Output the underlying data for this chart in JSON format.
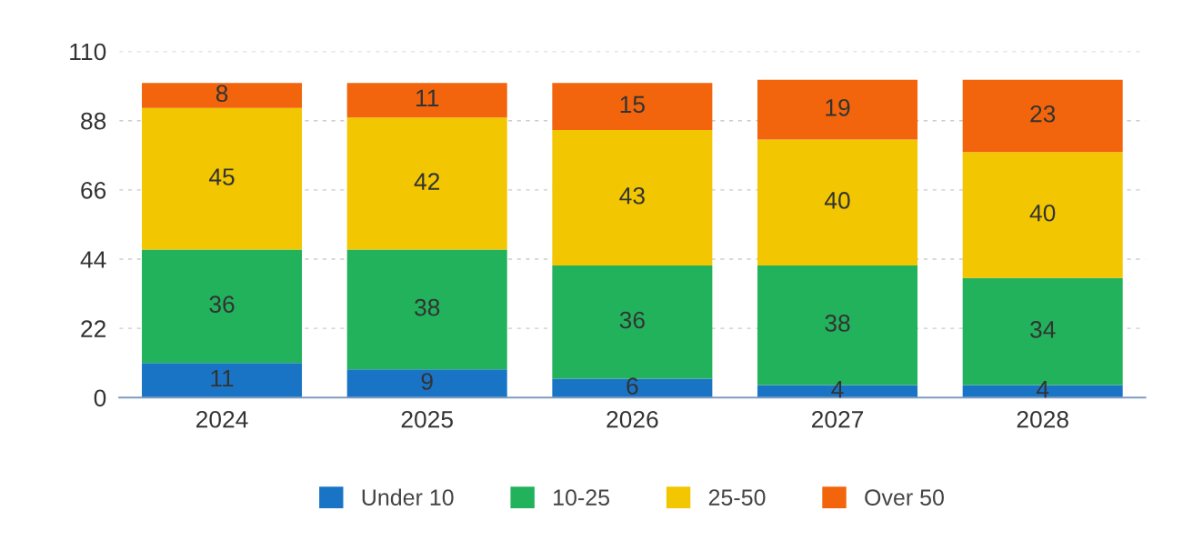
{
  "chart_data": {
    "type": "bar",
    "stacked": true,
    "categories": [
      "2024",
      "2025",
      "2026",
      "2027",
      "2028"
    ],
    "series": [
      {
        "name": "Under 10",
        "color": "#1a74c6",
        "values": [
          11,
          9,
          6,
          4,
          4
        ]
      },
      {
        "name": "10-25",
        "color": "#22b25c",
        "values": [
          36,
          38,
          36,
          38,
          34
        ]
      },
      {
        "name": "25-50",
        "color": "#f2c600",
        "values": [
          45,
          42,
          43,
          40,
          40
        ]
      },
      {
        "name": "Over 50",
        "color": "#f2650c",
        "values": [
          8,
          11,
          15,
          19,
          23
        ]
      }
    ],
    "ylim": [
      0,
      110
    ],
    "yticks": [
      0,
      22,
      44,
      66,
      88,
      110
    ],
    "grid": "y",
    "legend": "bottom",
    "data_labels": true
  }
}
